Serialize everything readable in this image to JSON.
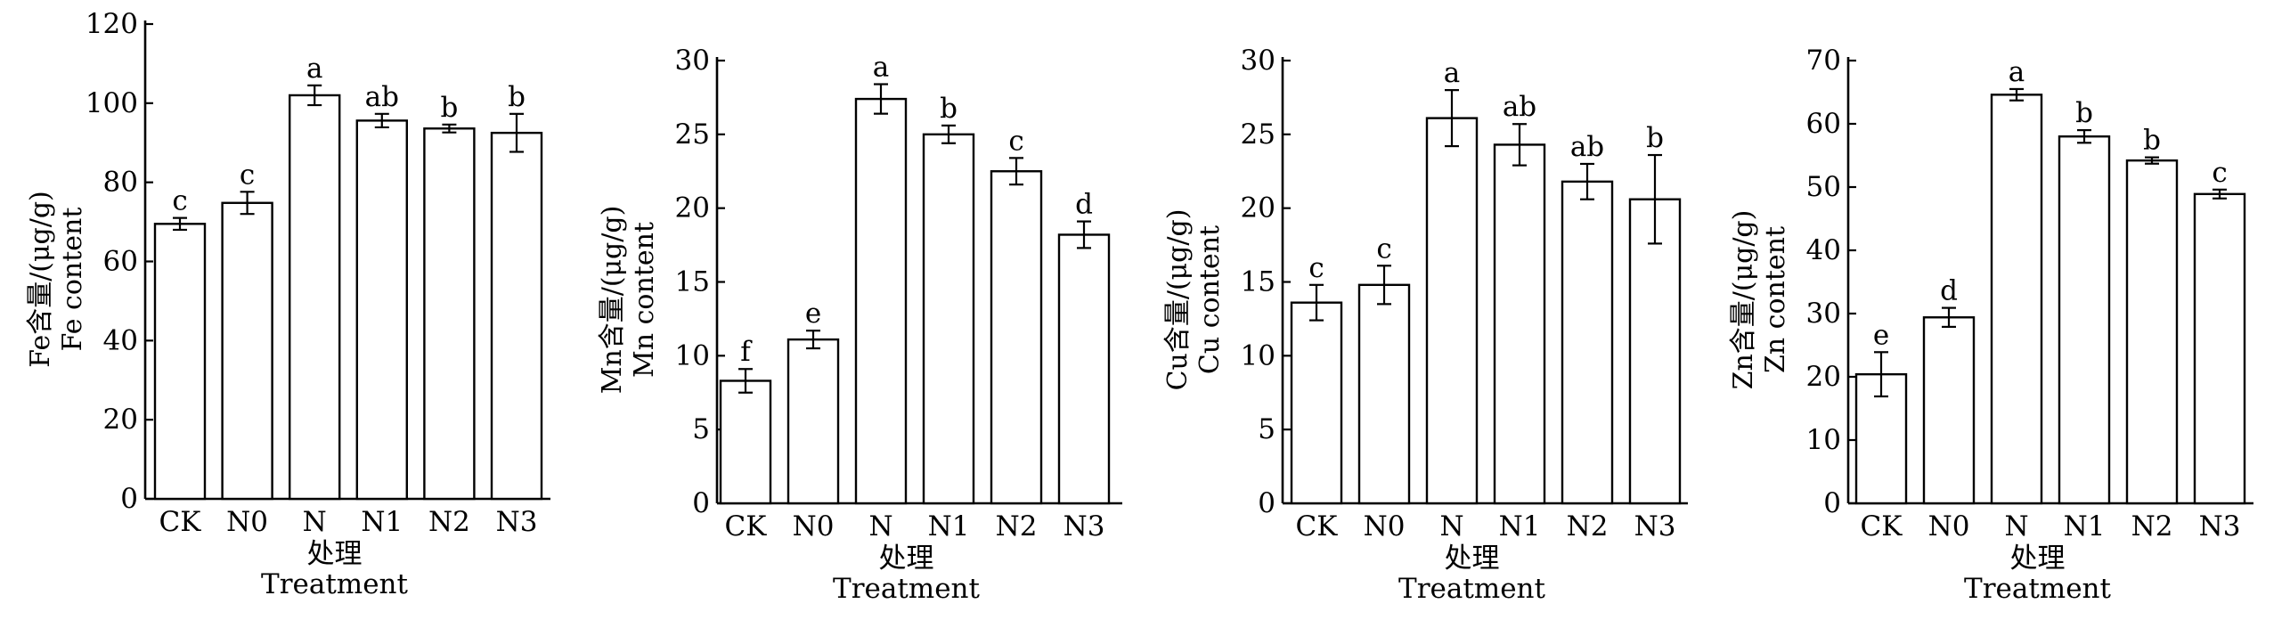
{
  "chart_data": [
    {
      "type": "bar",
      "ylabel": "Fe含量/(μg/g)",
      "ylabel2": "Fe content",
      "xlabel": "处理",
      "xlabel2": "Treatment",
      "categories": [
        "CK",
        "N0",
        "N",
        "N1",
        "N2",
        "N3"
      ],
      "values": [
        69.5,
        74.8,
        102.0,
        95.6,
        93.6,
        92.5
      ],
      "errors": [
        1.5,
        2.8,
        2.5,
        1.7,
        1.0,
        4.8
      ],
      "significance": [
        "c",
        "c",
        "a",
        "ab",
        "b",
        "b"
      ],
      "ylim": [
        0,
        120
      ],
      "yticks": [
        0,
        20,
        40,
        60,
        80,
        100,
        120
      ]
    },
    {
      "type": "bar",
      "ylabel": "Mn含量/(μg/g)",
      "ylabel2": "Mn content",
      "xlabel": "处理",
      "xlabel2": "Treatment",
      "categories": [
        "CK",
        "N0",
        "N",
        "N1",
        "N2",
        "N3"
      ],
      "values": [
        8.3,
        11.1,
        27.4,
        25.0,
        22.5,
        18.2
      ],
      "errors": [
        0.8,
        0.6,
        1.0,
        0.6,
        0.9,
        0.9
      ],
      "significance": [
        "f",
        "e",
        "a",
        "b",
        "c",
        "d"
      ],
      "ylim": [
        0,
        30
      ],
      "yticks": [
        0,
        5,
        10,
        15,
        20,
        25,
        30
      ]
    },
    {
      "type": "bar",
      "ylabel": "Cu含量/(μg/g)",
      "ylabel2": "Cu content",
      "xlabel": "处理",
      "xlabel2": "Treatment",
      "categories": [
        "CK",
        "N0",
        "N",
        "N1",
        "N2",
        "N3"
      ],
      "values": [
        13.6,
        14.8,
        26.1,
        24.3,
        21.8,
        20.6
      ],
      "errors": [
        1.2,
        1.3,
        1.9,
        1.4,
        1.2,
        3.0
      ],
      "significance": [
        "c",
        "c",
        "a",
        "ab",
        "ab",
        "b"
      ],
      "ylim": [
        0,
        30
      ],
      "yticks": [
        0,
        5,
        10,
        15,
        20,
        25,
        30
      ]
    },
    {
      "type": "bar",
      "ylabel": "Zn含量/(μg/g)",
      "ylabel2": "Zn content",
      "xlabel": "处理",
      "xlabel2": "Treatment",
      "categories": [
        "CK",
        "N0",
        "N",
        "N1",
        "N2",
        "N3"
      ],
      "values": [
        20.4,
        29.4,
        64.6,
        58.0,
        54.2,
        48.9
      ],
      "errors": [
        3.5,
        1.5,
        0.9,
        1.0,
        0.5,
        0.7
      ],
      "significance": [
        "e",
        "d",
        "a",
        "b",
        "b",
        "c"
      ],
      "ylim": [
        0,
        70
      ],
      "yticks": [
        0,
        10,
        20,
        30,
        40,
        50,
        60,
        70
      ]
    }
  ]
}
